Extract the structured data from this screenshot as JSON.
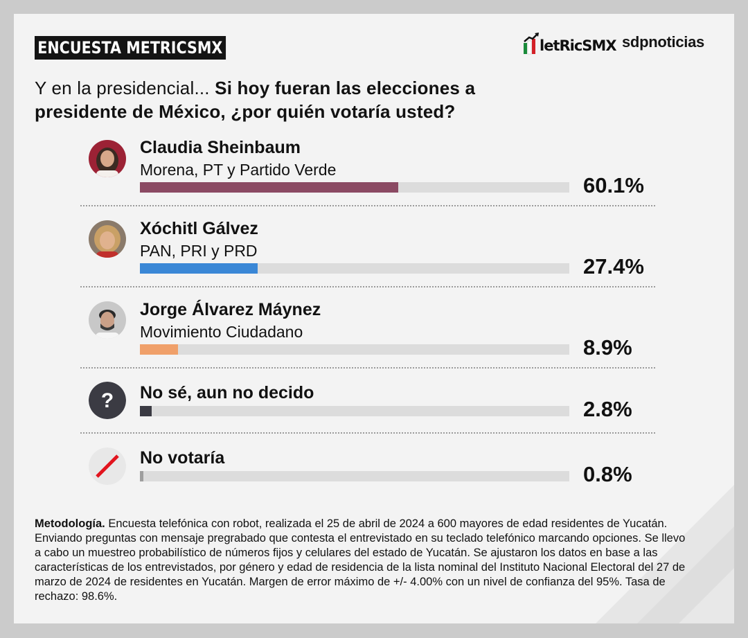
{
  "header": {
    "badge": "ENCUESTA METRICSMX",
    "logo_metrics_text": "letRicSMX",
    "logo_sdp": "sdpnoticias"
  },
  "question": {
    "intro": "Y en la presidencial...",
    "bold": "Si hoy fueran las elecciones a presidente de México, ¿por quién votaría usted?"
  },
  "chart_data": {
    "type": "bar",
    "orientation": "horizontal",
    "unit": "%",
    "categories": [
      "Claudia Sheinbaum",
      "Xóchitl Gálvez",
      "Jorge Álvarez Máynez",
      "No sé, aun no decido",
      "No votaría"
    ],
    "values": [
      60.1,
      27.4,
      8.9,
      2.8,
      0.8
    ],
    "items": [
      {
        "name": "Claudia Sheinbaum",
        "party": "Morena, PT y Partido Verde",
        "value": 60.1,
        "label": "60.1%",
        "color": "#8b4a63",
        "icon": "candidate-photo"
      },
      {
        "name": "Xóchitl Gálvez",
        "party": "PAN, PRI y PRD",
        "value": 27.4,
        "label": "27.4%",
        "color": "#3a87d6",
        "icon": "candidate-photo"
      },
      {
        "name": "Jorge Álvarez Máynez",
        "party": "Movimiento Ciudadano",
        "value": 8.9,
        "label": "8.9%",
        "color": "#f0a06a",
        "icon": "candidate-photo"
      },
      {
        "name": "No sé, aun no decido",
        "party": "",
        "value": 2.8,
        "label": "2.8%",
        "color": "#3b3b43",
        "icon": "question-icon"
      },
      {
        "name": "No votaría",
        "party": "",
        "value": 0.8,
        "label": "0.8%",
        "color": "#9e9e9e",
        "icon": "no-vote-icon"
      }
    ],
    "ylim": [
      0,
      100
    ]
  },
  "methodology": {
    "title": "Metodología.",
    "text": "Encuesta telefónica con robot, realizada el 25 de abril de 2024 a 600 mayores de edad residentes de Yucatán. Enviando preguntas con mensaje pregrabado que contesta el entrevistado en su teclado telefónico marcando opciones. Se llevo a cabo un muestreo probabilístico de números fijos y celulares del estado de Yucatán. Se ajustaron los datos en base a las características de los entrevistados, por género y edad de residencia de la lista nominal del Instituto Nacional Electoral del 27 de marzo de 2024 de residentes en Yucatán. Margen de error máximo de +/- 4.00% con un nivel de confianza del 95%. Tasa de rechazo: 98.6%."
  }
}
